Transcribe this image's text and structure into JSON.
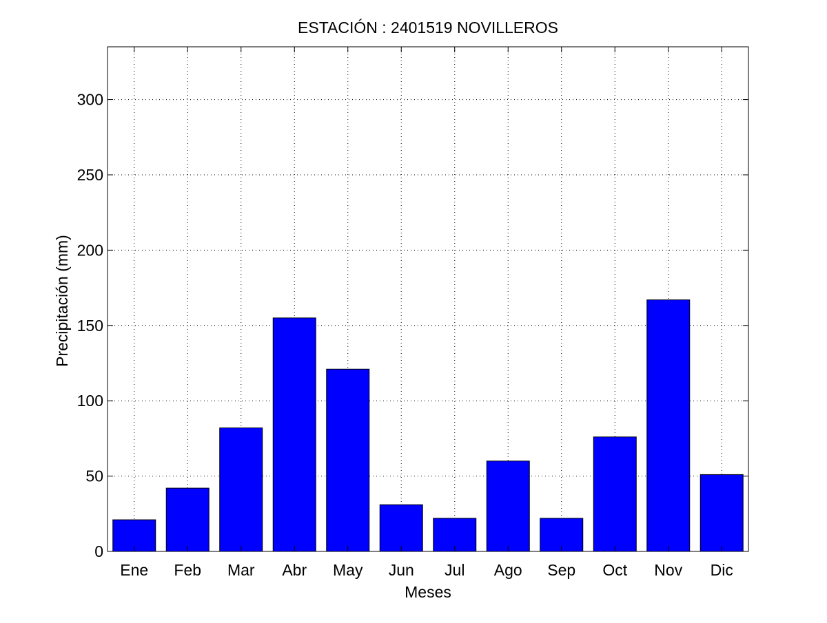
{
  "chart_data": {
    "type": "bar",
    "title": "ESTACIÓN : 2401519  NOVILLEROS",
    "xlabel": "Meses",
    "ylabel": "Precipitación (mm)",
    "categories": [
      "Ene",
      "Feb",
      "Mar",
      "Abr",
      "May",
      "Jun",
      "Jul",
      "Ago",
      "Sep",
      "Oct",
      "Nov",
      "Dic"
    ],
    "values": [
      21,
      42,
      82,
      155,
      121,
      31,
      22,
      60,
      22,
      76,
      167,
      51
    ],
    "ylim": [
      0,
      335
    ],
    "yticks": [
      0,
      50,
      100,
      150,
      200,
      250,
      300
    ],
    "grid": true,
    "legend": "none",
    "bar_color": "#0000ff"
  }
}
